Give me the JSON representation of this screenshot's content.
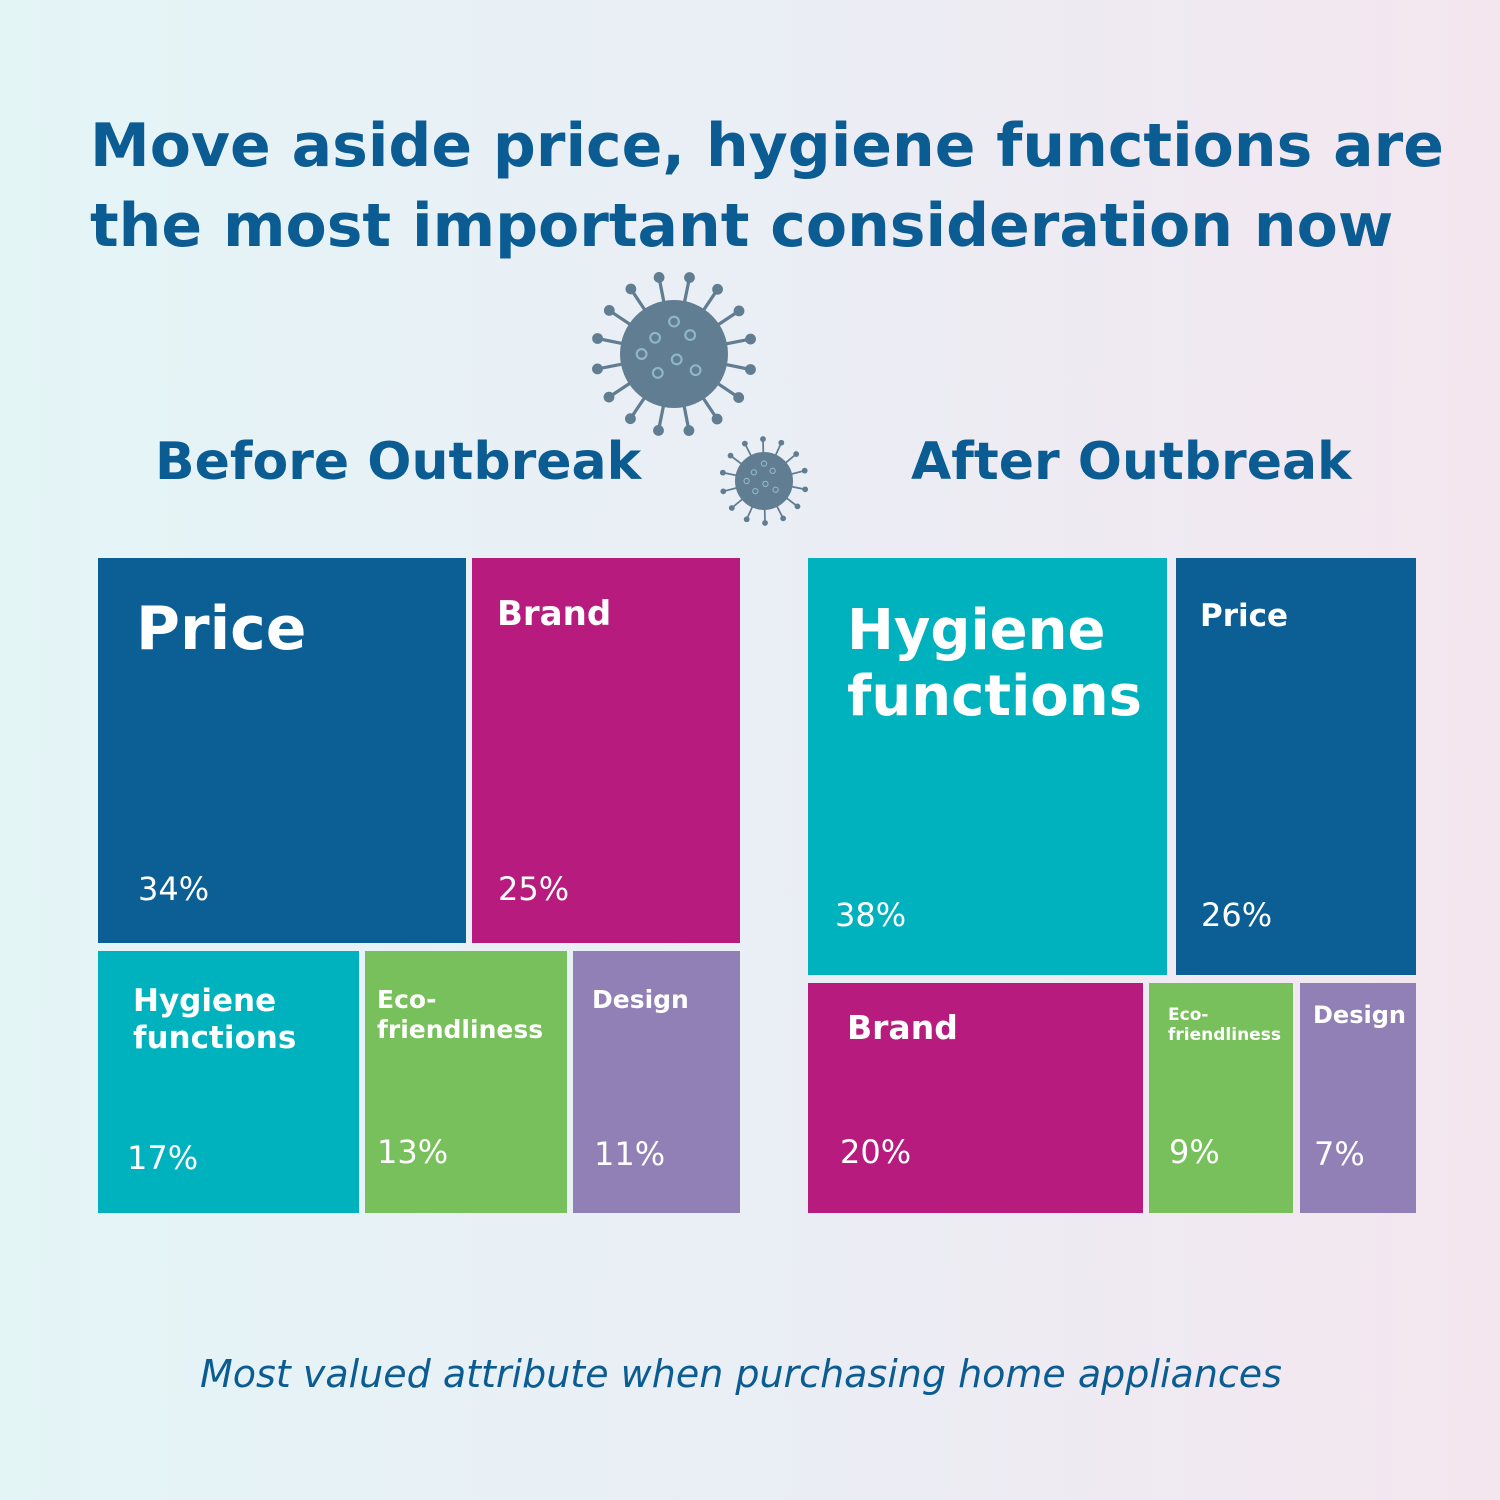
{
  "title": {
    "line1": "Move aside price, hygiene functions are",
    "line2": "the most important consideration now"
  },
  "caption": "Most valued attribute when purchasing home appliances",
  "icons": [
    "virus-icon-large",
    "virus-icon-small"
  ],
  "colors": {
    "heading": "#0a5c92",
    "price": "#0b5f94",
    "brand": "#b81b7e",
    "hygiene": "#00b2bd",
    "eco": "#77c05b",
    "design": "#9180b6",
    "virus": "#607d91"
  },
  "chart_data": [
    {
      "type": "treemap",
      "title": "Before Outbreak",
      "categories": [
        "Price",
        "Brand",
        "Hygiene functions",
        "Eco-friendliness",
        "Design"
      ],
      "labels": [
        "Price",
        "Brand",
        "Hygiene\nfunctions",
        "Eco-\nfriendliness",
        "Design"
      ],
      "values": [
        34,
        25,
        17,
        13,
        11
      ],
      "value_labels": [
        "34%",
        "25%",
        "17%",
        "13%",
        "11%"
      ],
      "unit": "%"
    },
    {
      "type": "treemap",
      "title": "After Outbreak",
      "categories": [
        "Hygiene functions",
        "Price",
        "Brand",
        "Eco-friendliness",
        "Design"
      ],
      "labels": [
        "Hygiene\nfunctions",
        "Price",
        "Brand",
        "Eco-\nfriendliness",
        "Design"
      ],
      "values": [
        38,
        26,
        20,
        9,
        7
      ],
      "value_labels": [
        "38%",
        "26%",
        "20%",
        "9%",
        "7%"
      ],
      "unit": "%"
    }
  ]
}
